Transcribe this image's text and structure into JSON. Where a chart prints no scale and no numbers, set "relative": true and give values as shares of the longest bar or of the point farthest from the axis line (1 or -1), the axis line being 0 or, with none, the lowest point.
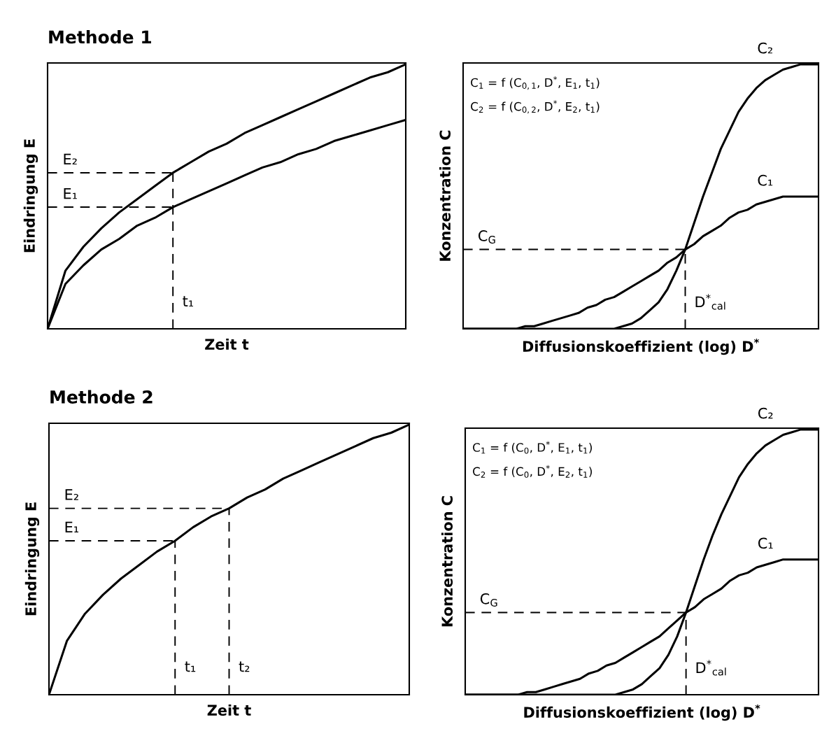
{
  "chart_data": [
    {
      "type": "line",
      "title": "Methode 1",
      "xlabel": "Zeit t",
      "ylabel": "Eindringung E",
      "relative": true,
      "categories": [
        null,
        null,
        null,
        null,
        null,
        null,
        null,
        null,
        null,
        null,
        null,
        null,
        null,
        null,
        null,
        null,
        null,
        null,
        null,
        null,
        null
      ],
      "series": [
        {
          "color": "#000000",
          "values": [
            0,
            0.22,
            0.31,
            0.38,
            0.44,
            0.49,
            0.54,
            0.59,
            0.63,
            0.67,
            0.7,
            0.74,
            0.77,
            0.8,
            0.83,
            0.86,
            0.89,
            0.92,
            0.95,
            0.97,
            1
          ]
        },
        {
          "color": "#000000",
          "values": [
            0,
            0.17,
            0.24,
            0.3,
            0.34,
            0.39,
            0.42,
            0.46,
            0.49,
            0.52,
            0.55,
            0.58,
            0.61,
            0.63,
            0.66,
            0.68,
            0.71,
            0.73,
            0.75,
            0.77,
            0.79
          ]
        },
        {
          "name": "E₂",
          "color": "#000000",
          "line_style": "dashed",
          "values": [
            0.59,
            0.59,
            0.59,
            0.59,
            0.59,
            0.59,
            0.59,
            0.59,
            null,
            null,
            null,
            null,
            null,
            null,
            null,
            null,
            null,
            null,
            null,
            null,
            null
          ]
        },
        {
          "name": "E₁",
          "color": "#000000",
          "line_style": "dashed",
          "values": [
            0.46,
            0.46,
            0.46,
            0.46,
            0.46,
            0.46,
            0.46,
            0.46,
            null,
            null,
            null,
            null,
            null,
            null,
            null,
            null,
            null,
            null,
            null,
            null,
            null
          ]
        }
      ],
      "annotations": [
        "t₁"
      ],
      "legend": false
    },
    {
      "type": "line",
      "xlabel": "Diffusionskoeffizient (log) D$^{*}$",
      "ylabel": "Konzentration C",
      "relative": true,
      "categories": [
        null,
        null,
        null,
        null,
        null,
        null,
        null,
        null,
        null,
        null,
        null,
        null,
        null,
        null,
        null,
        null,
        null,
        null,
        null,
        null,
        null,
        null,
        null,
        null,
        null,
        null,
        null,
        null,
        null,
        null,
        null,
        null,
        null,
        null,
        null,
        null,
        null,
        null,
        null,
        null,
        null
      ],
      "annotations": [
        "C$_{1}$ = f (C$_{0,1}$, D$^{*}$, E$_{1}$, t$_{1}$)",
        "C$_{2}$ = f (C$_{0,2}$, D$^{*}$, E$_{2}$, t$_{1}$)",
        "D$^{*}$$_{cal}$"
      ],
      "series": [
        {
          "name": "C₂",
          "color": "#000000",
          "values": [
            0,
            0,
            0,
            0,
            0,
            0,
            0,
            0,
            0,
            0,
            0,
            0,
            0,
            0,
            0,
            0,
            0,
            0,
            0.01,
            0.02,
            0.04,
            0.07,
            0.1,
            0.15,
            0.22,
            0.3,
            0.4,
            0.5,
            0.59,
            0.68,
            0.75,
            0.82,
            0.87,
            0.91,
            0.94,
            0.96,
            0.98,
            0.99,
            1,
            1,
            1
          ]
        },
        {
          "name": "C₁",
          "color": "#000000",
          "values": [
            0,
            0,
            0,
            0,
            0,
            0,
            0,
            0.01,
            0.01,
            0.02,
            0.03,
            0.04,
            0.05,
            0.06,
            0.08,
            0.09,
            0.11,
            0.12,
            0.14,
            0.16,
            0.18,
            0.2,
            0.22,
            0.25,
            0.27,
            0.3,
            0.32,
            0.35,
            0.37,
            0.39,
            0.42,
            0.44,
            0.45,
            0.47,
            0.48,
            0.49,
            0.5,
            0.5,
            0.5,
            0.5,
            0.5
          ]
        },
        {
          "name": "C$_{G}$",
          "color": "#000000",
          "line_style": "dashed",
          "values": [
            0.3,
            0.3,
            0.3,
            0.3,
            0.3,
            0.3,
            0.3,
            0.3,
            0.3,
            0.3,
            0.3,
            0.3,
            0.3,
            0.3,
            0.3,
            0.3,
            0.3,
            0.3,
            0.3,
            0.3,
            0.3,
            0.3,
            0.3,
            0.3,
            0.3,
            0.3,
            null,
            null,
            null,
            null,
            null,
            null,
            null,
            null,
            null,
            null,
            null,
            null,
            null,
            null,
            null
          ]
        }
      ],
      "legend": false
    },
    {
      "type": "line",
      "title": "Methode 2",
      "xlabel": "Zeit t",
      "ylabel": "Eindringung E",
      "relative": true,
      "categories": [
        null,
        null,
        null,
        null,
        null,
        null,
        null,
        null,
        null,
        null,
        null,
        null,
        null,
        null,
        null,
        null,
        null,
        null,
        null,
        null,
        null
      ],
      "series": [
        {
          "color": "#000000",
          "values": [
            0,
            0.2,
            0.3,
            0.37,
            0.43,
            0.48,
            0.53,
            0.57,
            0.62,
            0.66,
            0.69,
            0.73,
            0.76,
            0.8,
            0.83,
            0.86,
            0.89,
            0.92,
            0.95,
            0.97,
            1
          ]
        },
        {
          "name": "E₂",
          "color": "#000000",
          "line_style": "dashed",
          "values": [
            0.69,
            0.69,
            0.69,
            0.69,
            0.69,
            0.69,
            0.69,
            0.69,
            0.69,
            0.69,
            0.69,
            null,
            null,
            null,
            null,
            null,
            null,
            null,
            null,
            null,
            null
          ]
        },
        {
          "name": "E₁",
          "color": "#000000",
          "line_style": "dashed",
          "values": [
            0.57,
            0.57,
            0.57,
            0.57,
            0.57,
            0.57,
            0.57,
            0.57,
            null,
            null,
            null,
            null,
            null,
            null,
            null,
            null,
            null,
            null,
            null,
            null,
            null
          ]
        }
      ],
      "annotations": [
        "t₁",
        "t₂"
      ],
      "legend": false
    },
    {
      "type": "line",
      "xlabel": "Diffusionskoeffizient (log) D$^{*}$",
      "ylabel": "Konzentration C",
      "relative": true,
      "categories": [
        null,
        null,
        null,
        null,
        null,
        null,
        null,
        null,
        null,
        null,
        null,
        null,
        null,
        null,
        null,
        null,
        null,
        null,
        null,
        null,
        null,
        null,
        null,
        null,
        null,
        null,
        null,
        null,
        null,
        null,
        null,
        null,
        null,
        null,
        null,
        null,
        null,
        null,
        null,
        null,
        null
      ],
      "annotations": [
        "C$_{1}$ = f (C$_{0}$, D$^{*}$, E$_{1}$, t$_{1}$)",
        "C$_{2}$ = f (C$_{0}$, D$^{*}$, E$_{2}$, t$_{1}$)",
        "D$^{*}$$_{cal}$"
      ],
      "series": [
        {
          "name": "C₂",
          "color": "#000000",
          "values": [
            0,
            0,
            0,
            0,
            0,
            0,
            0,
            0,
            0,
            0,
            0,
            0,
            0,
            0,
            0,
            0,
            0,
            0,
            0.01,
            0.02,
            0.04,
            0.07,
            0.1,
            0.15,
            0.22,
            0.31,
            0.41,
            0.51,
            0.6,
            0.68,
            0.75,
            0.82,
            0.87,
            0.91,
            0.94,
            0.96,
            0.98,
            0.99,
            1,
            1,
            1
          ]
        },
        {
          "name": "C₁",
          "color": "#000000",
          "values": [
            0,
            0,
            0,
            0,
            0,
            0,
            0,
            0.01,
            0.01,
            0.02,
            0.03,
            0.04,
            0.05,
            0.06,
            0.08,
            0.09,
            0.11,
            0.12,
            0.14,
            0.16,
            0.18,
            0.2,
            0.22,
            0.25,
            0.28,
            0.31,
            0.33,
            0.36,
            0.38,
            0.4,
            0.43,
            0.45,
            0.46,
            0.48,
            0.49,
            0.5,
            0.51,
            0.51,
            0.51,
            0.51,
            0.51
          ]
        },
        {
          "name": "C$_{G}$",
          "color": "#000000",
          "line_style": "dashed",
          "values": [
            0.31,
            0.31,
            0.31,
            0.31,
            0.31,
            0.31,
            0.31,
            0.31,
            0.31,
            0.31,
            0.31,
            0.31,
            0.31,
            0.31,
            0.31,
            0.31,
            0.31,
            0.31,
            0.31,
            0.31,
            0.31,
            0.31,
            0.31,
            0.31,
            0.31,
            0.31,
            null,
            null,
            null,
            null,
            null,
            null,
            null,
            null,
            null,
            null,
            null,
            null,
            null,
            null,
            null
          ]
        }
      ],
      "legend": false
    }
  ]
}
